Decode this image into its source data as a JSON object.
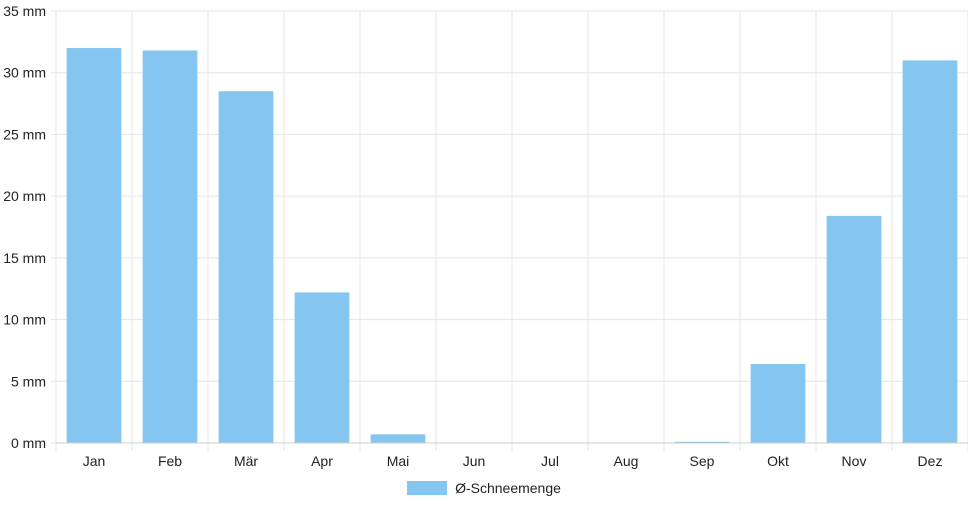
{
  "chart_data": {
    "type": "bar",
    "categories": [
      "Jan",
      "Feb",
      "Mär",
      "Apr",
      "Mai",
      "Jun",
      "Jul",
      "Aug",
      "Sep",
      "Okt",
      "Nov",
      "Dez"
    ],
    "series": [
      {
        "name": "Ø-Schneemenge",
        "values": [
          32.0,
          31.8,
          28.5,
          12.2,
          0.7,
          0,
          0,
          0,
          0.1,
          6.4,
          18.4,
          31.0
        ]
      }
    ],
    "ylim": [
      0,
      35
    ],
    "yticks": [
      0,
      5,
      10,
      15,
      20,
      25,
      30,
      35
    ],
    "ytick_labels": [
      "0 mm",
      "5 mm",
      "10 mm",
      "15 mm",
      "20 mm",
      "25 mm",
      "30 mm",
      "35 mm"
    ],
    "grid": true,
    "legend_position": "bottom",
    "colors": {
      "bar": "#85c6f1",
      "grid": "#e5e5e5",
      "axis": "#cccccc"
    }
  },
  "legend": {
    "label": "Ø-Schneemenge"
  }
}
